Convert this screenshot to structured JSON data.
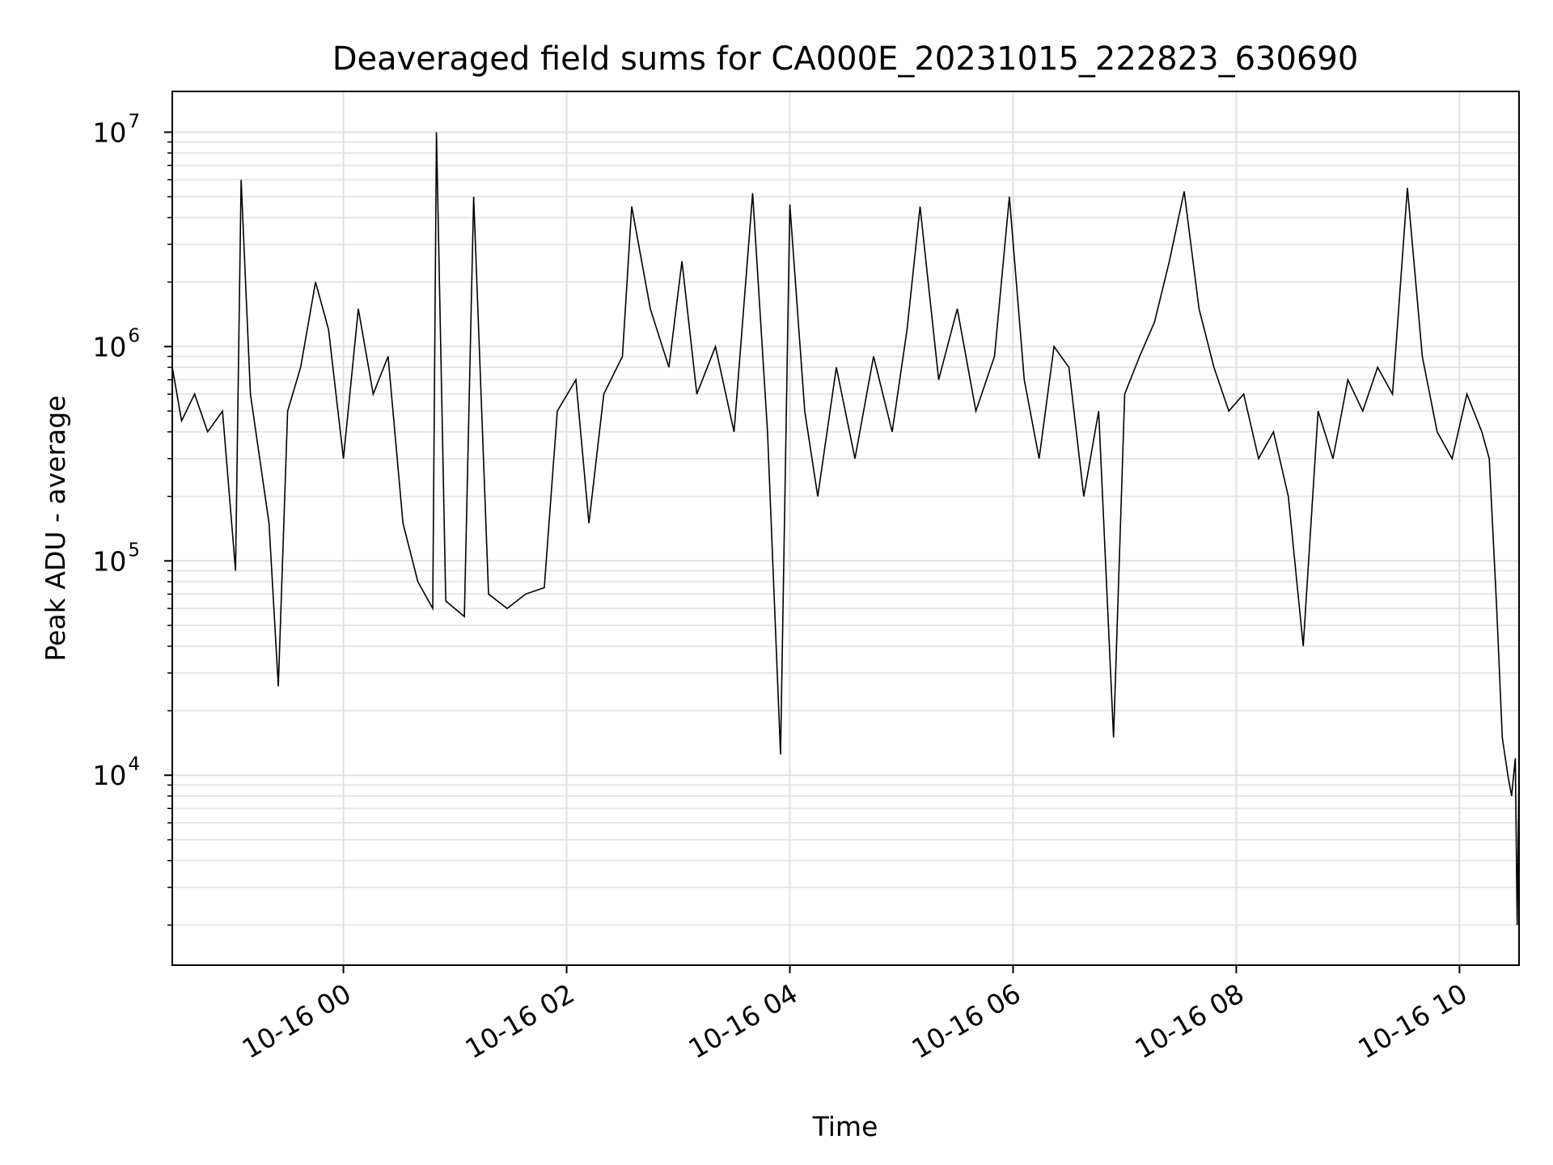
{
  "chart_data": {
    "type": "line",
    "title": "Deaveraged field sums for CA000E_20231015_222823_630690",
    "xlabel": "Time",
    "ylabel": "Peak ADU - average",
    "yscale": "log",
    "ylim": [
      1300,
      15500000
    ],
    "xlim": [
      "2023-10-15 22:28",
      "2023-10-16 10:32"
    ],
    "x_ticks": [
      {
        "value": "2023-10-16 00:00",
        "label": "10-16 00"
      },
      {
        "value": "2023-10-16 02:00",
        "label": "10-16 02"
      },
      {
        "value": "2023-10-16 04:00",
        "label": "10-16 04"
      },
      {
        "value": "2023-10-16 06:00",
        "label": "10-16 06"
      },
      {
        "value": "2023-10-16 08:00",
        "label": "10-16 08"
      },
      {
        "value": "2023-10-16 10:00",
        "label": "10-16 10"
      }
    ],
    "y_ticks": [
      {
        "value": 10000,
        "base": "10",
        "exp": "4"
      },
      {
        "value": 100000,
        "base": "10",
        "exp": "5"
      },
      {
        "value": 1000000,
        "base": "10",
        "exp": "6"
      },
      {
        "value": 10000000,
        "base": "10",
        "exp": "7"
      }
    ],
    "grid": true,
    "line_color": "#000000",
    "series": [
      {
        "values": [
          [
            "2023-10-15 22:28",
            800000
          ],
          [
            "2023-10-15 22:33",
            450000
          ],
          [
            "2023-10-15 22:40",
            600000
          ],
          [
            "2023-10-15 22:47",
            400000
          ],
          [
            "2023-10-15 22:55",
            500000
          ],
          [
            "2023-10-15 23:02",
            90000
          ],
          [
            "2023-10-15 23:05",
            6000000
          ],
          [
            "2023-10-15 23:10",
            600000
          ],
          [
            "2023-10-15 23:15",
            300000
          ],
          [
            "2023-10-15 23:20",
            150000
          ],
          [
            "2023-10-15 23:25",
            26000
          ],
          [
            "2023-10-15 23:30",
            500000
          ],
          [
            "2023-10-15 23:37",
            800000
          ],
          [
            "2023-10-15 23:45",
            2000000
          ],
          [
            "2023-10-15 23:52",
            1200000
          ],
          [
            "2023-10-16 00:00",
            300000
          ],
          [
            "2023-10-16 00:08",
            1500000
          ],
          [
            "2023-10-16 00:16",
            600000
          ],
          [
            "2023-10-16 00:24",
            900000
          ],
          [
            "2023-10-16 00:32",
            150000
          ],
          [
            "2023-10-16 00:40",
            80000
          ],
          [
            "2023-10-16 00:48",
            60000
          ],
          [
            "2023-10-16 00:50",
            10000000
          ],
          [
            "2023-10-16 00:55",
            65000
          ],
          [
            "2023-10-16 01:05",
            55000
          ],
          [
            "2023-10-16 01:10",
            5000000
          ],
          [
            "2023-10-16 01:18",
            70000
          ],
          [
            "2023-10-16 01:28",
            60000
          ],
          [
            "2023-10-16 01:38",
            70000
          ],
          [
            "2023-10-16 01:48",
            75000
          ],
          [
            "2023-10-16 01:55",
            500000
          ],
          [
            "2023-10-16 02:05",
            700000
          ],
          [
            "2023-10-16 02:12",
            150000
          ],
          [
            "2023-10-16 02:20",
            600000
          ],
          [
            "2023-10-16 02:30",
            900000
          ],
          [
            "2023-10-16 02:35",
            4500000
          ],
          [
            "2023-10-16 02:45",
            1500000
          ],
          [
            "2023-10-16 02:55",
            800000
          ],
          [
            "2023-10-16 03:02",
            2500000
          ],
          [
            "2023-10-16 03:10",
            600000
          ],
          [
            "2023-10-16 03:20",
            1000000
          ],
          [
            "2023-10-16 03:30",
            400000
          ],
          [
            "2023-10-16 03:40",
            5200000
          ],
          [
            "2023-10-16 03:48",
            400000
          ],
          [
            "2023-10-16 03:55",
            12500
          ],
          [
            "2023-10-16 04:00",
            4600000
          ],
          [
            "2023-10-16 04:08",
            500000
          ],
          [
            "2023-10-16 04:15",
            200000
          ],
          [
            "2023-10-16 04:25",
            800000
          ],
          [
            "2023-10-16 04:35",
            300000
          ],
          [
            "2023-10-16 04:45",
            900000
          ],
          [
            "2023-10-16 04:55",
            400000
          ],
          [
            "2023-10-16 05:03",
            1200000
          ],
          [
            "2023-10-16 05:10",
            4500000
          ],
          [
            "2023-10-16 05:20",
            700000
          ],
          [
            "2023-10-16 05:30",
            1500000
          ],
          [
            "2023-10-16 05:40",
            500000
          ],
          [
            "2023-10-16 05:50",
            900000
          ],
          [
            "2023-10-16 05:58",
            5000000
          ],
          [
            "2023-10-16 06:06",
            700000
          ],
          [
            "2023-10-16 06:14",
            300000
          ],
          [
            "2023-10-16 06:22",
            1000000
          ],
          [
            "2023-10-16 06:30",
            800000
          ],
          [
            "2023-10-16 06:38",
            200000
          ],
          [
            "2023-10-16 06:46",
            500000
          ],
          [
            "2023-10-16 06:54",
            15000
          ],
          [
            "2023-10-16 07:00",
            600000
          ],
          [
            "2023-10-16 07:08",
            900000
          ],
          [
            "2023-10-16 07:16",
            1300000
          ],
          [
            "2023-10-16 07:24",
            2500000
          ],
          [
            "2023-10-16 07:32",
            5300000
          ],
          [
            "2023-10-16 07:40",
            1500000
          ],
          [
            "2023-10-16 07:48",
            800000
          ],
          [
            "2023-10-16 07:56",
            500000
          ],
          [
            "2023-10-16 08:04",
            600000
          ],
          [
            "2023-10-16 08:12",
            300000
          ],
          [
            "2023-10-16 08:20",
            400000
          ],
          [
            "2023-10-16 08:28",
            200000
          ],
          [
            "2023-10-16 08:36",
            40000
          ],
          [
            "2023-10-16 08:44",
            500000
          ],
          [
            "2023-10-16 08:52",
            300000
          ],
          [
            "2023-10-16 09:00",
            700000
          ],
          [
            "2023-10-16 09:08",
            500000
          ],
          [
            "2023-10-16 09:16",
            800000
          ],
          [
            "2023-10-16 09:24",
            600000
          ],
          [
            "2023-10-16 09:32",
            5500000
          ],
          [
            "2023-10-16 09:40",
            900000
          ],
          [
            "2023-10-16 09:48",
            400000
          ],
          [
            "2023-10-16 09:56",
            300000
          ],
          [
            "2023-10-16 10:04",
            600000
          ],
          [
            "2023-10-16 10:12",
            400000
          ],
          [
            "2023-10-16 10:16",
            300000
          ],
          [
            "2023-10-16 10:20",
            60000
          ],
          [
            "2023-10-16 10:23",
            15000
          ],
          [
            "2023-10-16 10:26",
            10000
          ],
          [
            "2023-10-16 10:28",
            8000
          ],
          [
            "2023-10-16 10:30",
            12000
          ],
          [
            "2023-10-16 10:31",
            2000
          ],
          [
            "2023-10-16 10:32",
            11000
          ]
        ]
      }
    ]
  }
}
